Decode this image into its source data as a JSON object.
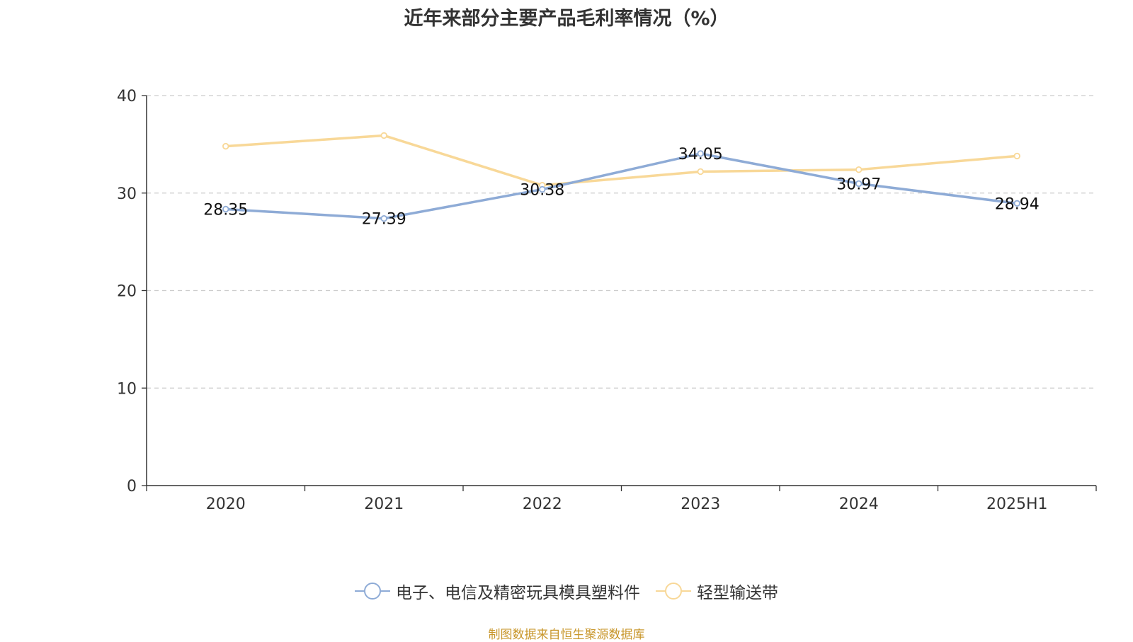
{
  "chart_data": {
    "type": "line",
    "title": "近年来部分主要产品毛利率情况（%）",
    "categories": [
      "2020",
      "2021",
      "2022",
      "2023",
      "2024",
      "2025H1"
    ],
    "ylim": [
      0,
      40
    ],
    "yticks": [
      0,
      10,
      20,
      30,
      40
    ],
    "grid": true,
    "legend_position": "bottom",
    "series": [
      {
        "name": "电子、电信及精密玩具模具塑料件",
        "values": [
          28.35,
          27.39,
          30.38,
          34.05,
          30.97,
          28.94
        ],
        "data_labels": [
          "28.35",
          "27.39",
          "30.38",
          "34.05",
          "30.97",
          "28.94"
        ],
        "color": "#8eabd6"
      },
      {
        "name": "轻型输送带",
        "values": [
          34.8,
          35.9,
          30.8,
          32.2,
          32.4,
          33.8
        ],
        "color": "#f8d898"
      }
    ],
    "source": "制图数据来自恒生聚源数据库"
  }
}
